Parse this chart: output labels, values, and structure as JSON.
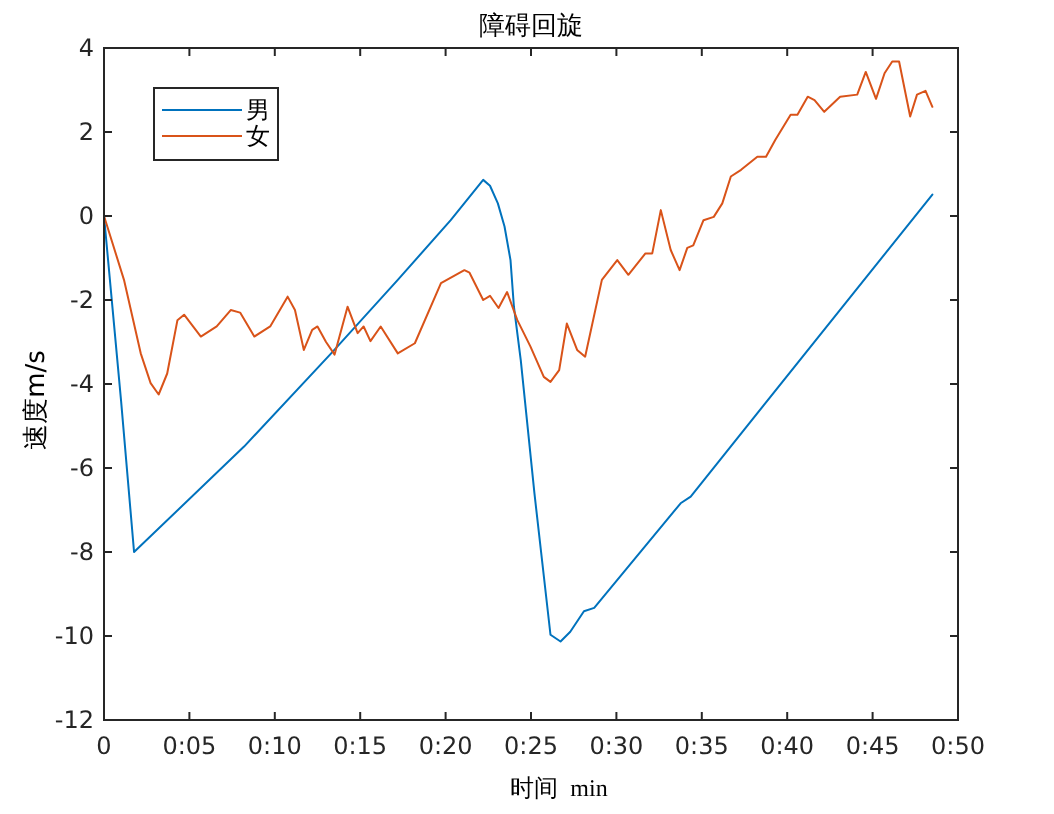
{
  "chart_data": {
    "type": "line",
    "title": "障碍回旋",
    "xlabel": "时间  min",
    "ylabel": "速度m/s",
    "xlim": [
      0,
      50
    ],
    "ylim": [
      -12,
      4
    ],
    "xticks": [
      0,
      {
        "value": 5,
        "label": "0:05"
      },
      {
        "value": 10,
        "label": "0:10"
      },
      {
        "value": 15,
        "label": "0:15"
      },
      {
        "value": 20,
        "label": "0:20"
      },
      {
        "value": 25,
        "label": "0:25"
      },
      {
        "value": 30,
        "label": "0:30"
      },
      {
        "value": 35,
        "label": "0:35"
      },
      {
        "value": 40,
        "label": "0:40"
      },
      {
        "value": 45,
        "label": "0:45"
      },
      {
        "value": 50,
        "label": "0:50"
      }
    ],
    "yticks": [
      -12,
      -10,
      -8,
      -6,
      -4,
      -2,
      0,
      2,
      4
    ],
    "legend": "top left",
    "line_style": "solid",
    "series": [
      {
        "name": "男",
        "color": "#0072bd",
        "x": [
          0,
          0.5,
          1.0,
          1.76,
          8.2,
          13.3,
          17.2,
          20.3,
          22.2,
          22.6,
          23.06,
          23.45,
          23.8,
          24.0,
          24.4,
          25.2,
          26.14,
          26.73,
          27.3,
          28.1,
          28.7,
          33.76,
          34.35,
          48.5
        ],
        "values": [
          0,
          -2.2,
          -4.4,
          -8.0,
          -5.49,
          -3.27,
          -1.52,
          -0.1,
          0.86,
          0.72,
          0.3,
          -0.25,
          -1.05,
          -2.16,
          -3.43,
          -6.6,
          -9.97,
          -10.13,
          -9.9,
          -9.41,
          -9.33,
          -6.84,
          -6.68,
          0.51
        ]
      },
      {
        "name": "女",
        "color": "#d95319",
        "x": [
          0,
          1.17,
          2.15,
          2.73,
          3.2,
          3.7,
          4.3,
          4.69,
          5.67,
          6.6,
          7.42,
          7.97,
          8.8,
          9.73,
          10.75,
          11.18,
          11.7,
          12.19,
          12.5,
          13.0,
          13.5,
          14.26,
          14.85,
          15.2,
          15.6,
          16.2,
          17.2,
          18.2,
          19.73,
          21.1,
          21.4,
          22.2,
          22.6,
          23.1,
          23.6,
          24.2,
          24.97,
          25.75,
          26.14,
          26.65,
          27.1,
          27.7,
          28.17,
          29.15,
          30.05,
          30.7,
          31.7,
          32.1,
          32.6,
          33.18,
          33.7,
          34.15,
          34.5,
          35.1,
          35.7,
          36.2,
          36.7,
          37.3,
          38.25,
          38.76,
          39.3,
          40.2,
          40.6,
          41.2,
          41.6,
          42.17,
          43.1,
          44.1,
          44.6,
          45.2,
          45.7,
          46.15,
          46.55,
          47.2,
          47.6,
          48.1,
          48.5
        ],
        "values": [
          0,
          -1.52,
          -3.27,
          -3.98,
          -4.25,
          -3.75,
          -2.48,
          -2.35,
          -2.87,
          -2.63,
          -2.24,
          -2.3,
          -2.87,
          -2.63,
          -1.92,
          -2.24,
          -3.19,
          -2.71,
          -2.63,
          -3.0,
          -3.3,
          -2.16,
          -2.79,
          -2.63,
          -2.98,
          -2.63,
          -3.27,
          -3.03,
          -1.6,
          -1.29,
          -1.35,
          -2.0,
          -1.9,
          -2.19,
          -1.81,
          -2.48,
          -3.11,
          -3.83,
          -3.95,
          -3.67,
          -2.56,
          -3.19,
          -3.35,
          -1.52,
          -1.05,
          -1.4,
          -0.89,
          -0.89,
          0.14,
          -0.81,
          -1.29,
          -0.76,
          -0.7,
          -0.1,
          -0.02,
          0.3,
          0.94,
          1.1,
          1.41,
          1.41,
          1.81,
          2.41,
          2.41,
          2.84,
          2.76,
          2.48,
          2.84,
          2.89,
          3.43,
          2.79,
          3.4,
          3.68,
          3.68,
          2.37,
          2.89,
          2.98,
          2.6
        ]
      }
    ]
  }
}
